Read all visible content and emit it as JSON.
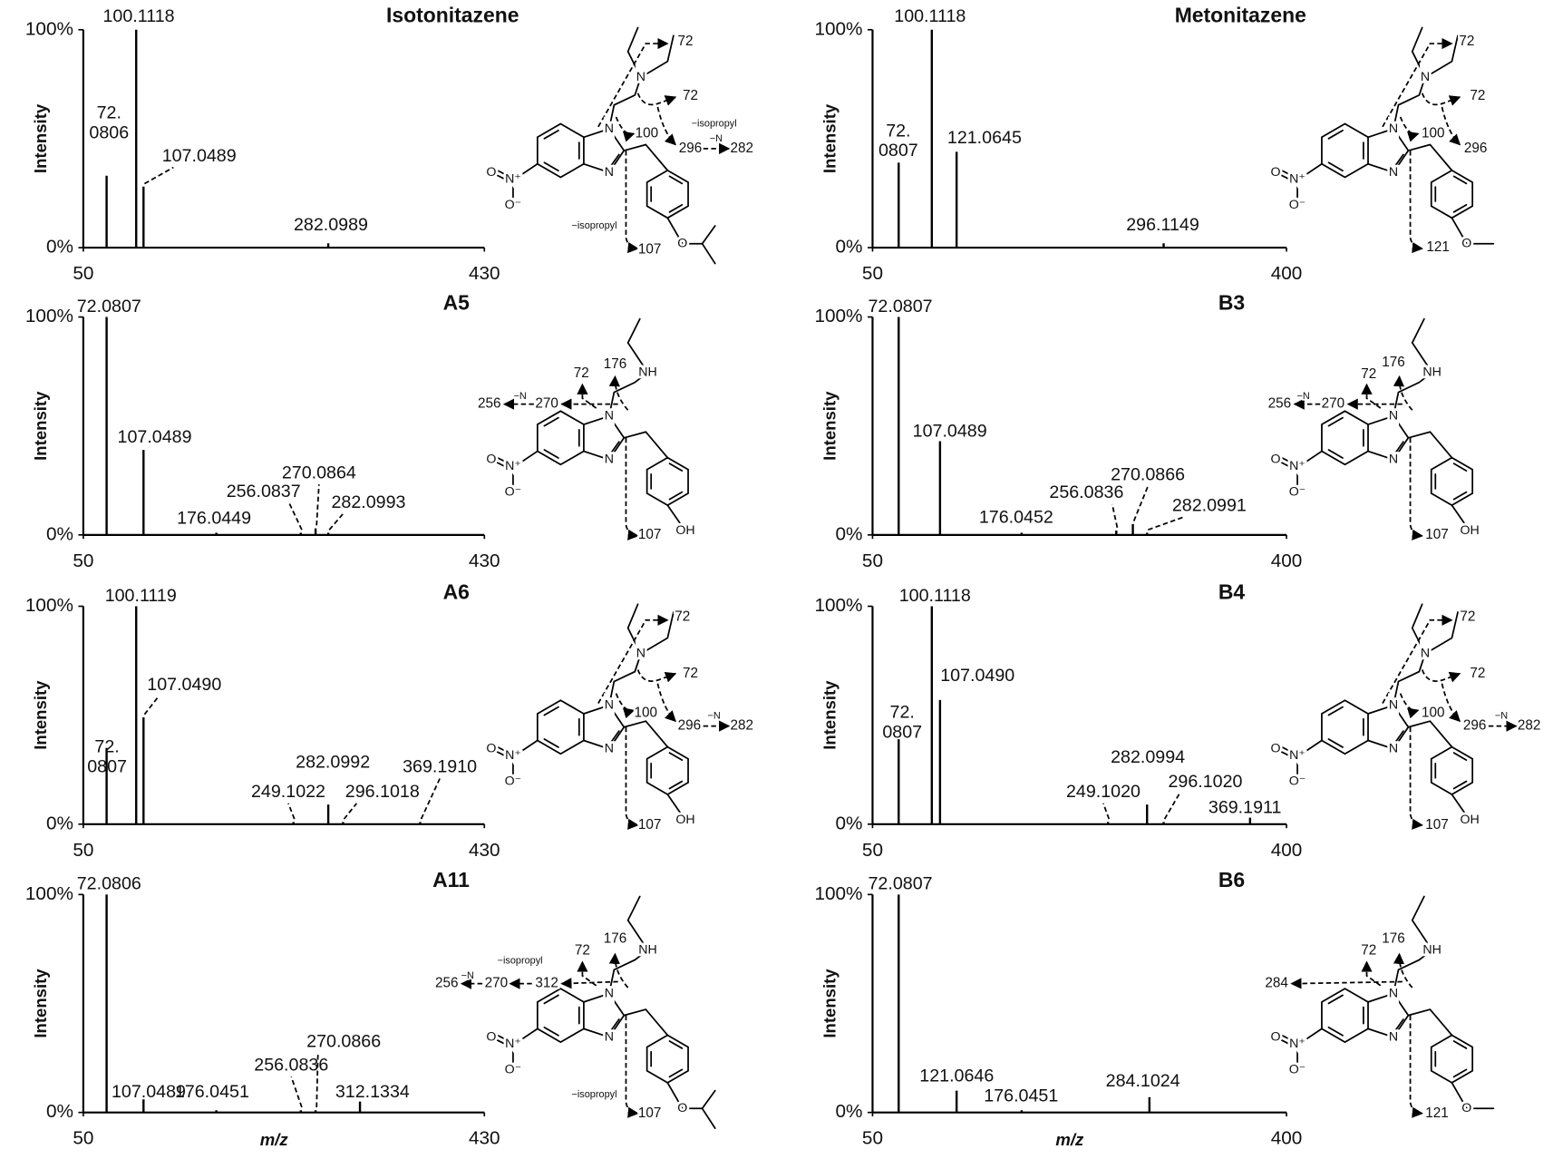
{
  "chart_data": [
    {
      "type": "bar",
      "title": "Isotonitazene",
      "ylabel": "Intensity",
      "x": [
        72.0806,
        100.1118,
        107.0489,
        282.0989
      ],
      "x_labels": [
        "72.0806",
        "100.1118",
        "107.0489",
        "282.0989"
      ],
      "values": [
        33,
        100,
        28,
        2
      ],
      "color": "#000000",
      "xlim": [
        50,
        430
      ],
      "ylim": [
        0,
        100
      ],
      "xticks": [
        50,
        430
      ],
      "yticks": [
        {
          "value": 0,
          "label": "0%"
        },
        {
          "value": 100,
          "label": "100%"
        }
      ],
      "atom_labels": [
        "O",
        "N⁺",
        "O⁻",
        "N",
        "N",
        "N",
        "O"
      ],
      "annotations": [
        "72",
        "72",
        "100",
        "−isopropyl",
        "296",
        "−N",
        "282",
        "−isopropyl",
        "107"
      ]
    },
    {
      "type": "bar",
      "title": "Metonitazene",
      "ylabel": "Intensity",
      "x": [
        72.0807,
        100.1118,
        121.0645,
        296.1149
      ],
      "x_labels": [
        "72.0807",
        "100.1118",
        "121.0645",
        "296.1149"
      ],
      "values": [
        39,
        100,
        44,
        2
      ],
      "color": "#000000",
      "xlim": [
        50,
        400
      ],
      "ylim": [
        0,
        100
      ],
      "xticks": [
        50,
        400
      ],
      "yticks": [
        {
          "value": 0,
          "label": "0%"
        },
        {
          "value": 100,
          "label": "100%"
        }
      ],
      "atom_labels": [
        "O",
        "N⁺",
        "O⁻",
        "N",
        "N",
        "N",
        "O"
      ],
      "annotations": [
        "72",
        "72",
        "100",
        "296",
        "121"
      ]
    },
    {
      "type": "bar",
      "title": "A5",
      "ylabel": "Intensity",
      "x": [
        72.0807,
        107.0489,
        176.0449,
        256.0837,
        270.0864,
        282.0993
      ],
      "x_labels": [
        "72.0807",
        "107.0489",
        "176.0449",
        "256.0837",
        "270.0864",
        "282.0993"
      ],
      "values": [
        100,
        39,
        1,
        1,
        3,
        1
      ],
      "color": "#000000",
      "xlim": [
        50,
        430
      ],
      "ylim": [
        0,
        100
      ],
      "xticks": [
        50,
        430
      ],
      "yticks": [
        {
          "value": 0,
          "label": "0%"
        },
        {
          "value": 100,
          "label": "100%"
        }
      ],
      "atom_labels": [
        "O",
        "N⁺",
        "O⁻",
        "N",
        "N",
        "NH",
        "OH"
      ],
      "annotations": [
        "176",
        "72",
        "256",
        "−N",
        "270",
        "107"
      ]
    },
    {
      "type": "bar",
      "title": "B3",
      "ylabel": "Intensity",
      "x": [
        72.0807,
        107.0489,
        176.0452,
        256.0836,
        270.0866,
        282.0991
      ],
      "x_labels": [
        "72.0807",
        "107.0489",
        "176.0452",
        "256.0836",
        "270.0866",
        "282.0991"
      ],
      "values": [
        100,
        43,
        1,
        2,
        5,
        1
      ],
      "color": "#000000",
      "xlim": [
        50,
        400
      ],
      "ylim": [
        0,
        100
      ],
      "xticks": [
        50,
        400
      ],
      "yticks": [
        {
          "value": 0,
          "label": "0%"
        },
        {
          "value": 100,
          "label": "100%"
        }
      ],
      "atom_labels": [
        "O",
        "N⁺",
        "O⁻",
        "N",
        "N",
        "NH",
        "OH"
      ],
      "annotations": [
        "176",
        "72",
        "256",
        "−N",
        "270",
        "107"
      ]
    },
    {
      "type": "bar",
      "title": "A6",
      "ylabel": "Intensity",
      "x": [
        72.0807,
        100.1119,
        107.049,
        249.1022,
        282.0992,
        296.1018,
        369.191
      ],
      "x_labels": [
        "72.0807",
        "100.1119",
        "107.0490",
        "249.1022",
        "282.0992",
        "296.1018",
        "369.1910"
      ],
      "values": [
        35,
        100,
        49,
        1,
        9,
        1,
        1
      ],
      "color": "#000000",
      "xlim": [
        50,
        430
      ],
      "ylim": [
        0,
        100
      ],
      "xticks": [
        50,
        430
      ],
      "yticks": [
        {
          "value": 0,
          "label": "0%"
        },
        {
          "value": 100,
          "label": "100%"
        }
      ],
      "atom_labels": [
        "O",
        "N⁺",
        "O⁻",
        "N",
        "N",
        "N",
        "OH"
      ],
      "annotations": [
        "72",
        "72",
        "100",
        "296",
        "−N",
        "282",
        "107"
      ]
    },
    {
      "type": "bar",
      "title": "B4",
      "ylabel": "Intensity",
      "x": [
        72.0807,
        100.1118,
        107.049,
        249.102,
        282.0994,
        296.102,
        369.1911
      ],
      "x_labels": [
        "72.0807",
        "100.1118",
        "107.0490",
        "249.1020",
        "282.0994",
        "296.1020",
        "369.1911"
      ],
      "values": [
        39,
        100,
        57,
        1,
        9,
        1,
        3
      ],
      "color": "#000000",
      "xlim": [
        50,
        400
      ],
      "ylim": [
        0,
        100
      ],
      "xticks": [
        50,
        400
      ],
      "yticks": [
        {
          "value": 0,
          "label": "0%"
        },
        {
          "value": 100,
          "label": "100%"
        }
      ],
      "atom_labels": [
        "O",
        "N⁺",
        "O⁻",
        "N",
        "N",
        "N",
        "OH"
      ],
      "annotations": [
        "72",
        "72",
        "100",
        "296",
        "−N",
        "282",
        "107"
      ]
    },
    {
      "type": "bar",
      "title": "A11",
      "ylabel": "Intensity",
      "xlabel": "m/z",
      "x": [
        72.0806,
        107.0489,
        176.0451,
        256.0836,
        270.0866,
        312.1334
      ],
      "x_labels": [
        "72.0806",
        "107.0489",
        "176.0451",
        "256.0836",
        "270.0866",
        "312.1334"
      ],
      "values": [
        100,
        6,
        1,
        1,
        1,
        5
      ],
      "color": "#000000",
      "xlim": [
        50,
        430
      ],
      "ylim": [
        0,
        100
      ],
      "xticks": [
        50,
        430
      ],
      "yticks": [
        {
          "value": 0,
          "label": "0%"
        },
        {
          "value": 100,
          "label": "100%"
        }
      ],
      "atom_labels": [
        "O",
        "N⁺",
        "O⁻",
        "N",
        "N",
        "NH",
        "O"
      ],
      "annotations": [
        "176",
        "72",
        "−isopropyl",
        "256",
        "−N",
        "270",
        "312",
        "−isopropyl",
        "107"
      ]
    },
    {
      "type": "bar",
      "title": "B6",
      "ylabel": "Intensity",
      "xlabel": "m/z",
      "x": [
        72.0807,
        121.0646,
        176.0451,
        284.1024
      ],
      "x_labels": [
        "72.0807",
        "121.0646",
        "176.0451",
        "284.1024"
      ],
      "values": [
        100,
        10,
        1,
        7
      ],
      "color": "#000000",
      "xlim": [
        50,
        400
      ],
      "ylim": [
        0,
        100
      ],
      "xticks": [
        50,
        400
      ],
      "yticks": [
        {
          "value": 0,
          "label": "0%"
        },
        {
          "value": 100,
          "label": "100%"
        }
      ],
      "atom_labels": [
        "O",
        "N⁺",
        "O⁻",
        "N",
        "N",
        "NH",
        "O"
      ],
      "annotations": [
        "176",
        "72",
        "284",
        "121"
      ]
    }
  ]
}
